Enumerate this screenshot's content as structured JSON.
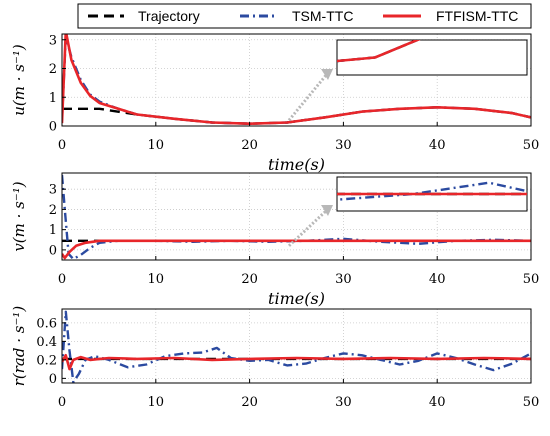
{
  "chart_data": {
    "type": "line",
    "legend": {
      "placement": "top",
      "entries": [
        {
          "name": "Trajectory",
          "color": "#000000",
          "style": "dashed"
        },
        {
          "name": "TSM-TTC",
          "color": "#2b4aa0",
          "style": "dashdot"
        },
        {
          "name": "FTFISM-TTC",
          "color": "#e8262a",
          "style": "solid"
        }
      ]
    },
    "panels": [
      {
        "id": "u",
        "ylabel": "u(m · s⁻¹)",
        "xlabel": "time(s)",
        "xlim": [
          0,
          50
        ],
        "ylim": [
          0,
          3.2
        ],
        "xticks": [
          0,
          10,
          20,
          30,
          40,
          50
        ],
        "yticks": [
          0,
          1,
          2,
          3
        ],
        "grid": true,
        "inset": true,
        "series": [
          {
            "name": "Trajectory",
            "points": [
              [
                0,
                0.6
              ],
              [
                4,
                0.6
              ],
              [
                8,
                0.4
              ],
              [
                12,
                0.25
              ],
              [
                16,
                0.12
              ],
              [
                20,
                0.08
              ],
              [
                24,
                0.12
              ],
              [
                28,
                0.3
              ],
              [
                32,
                0.5
              ],
              [
                36,
                0.6
              ],
              [
                40,
                0.65
              ],
              [
                44,
                0.6
              ],
              [
                48,
                0.45
              ],
              [
                50,
                0.3
              ]
            ]
          },
          {
            "name": "TSM-TTC",
            "points": [
              [
                0,
                0.2
              ],
              [
                0.4,
                3.1
              ],
              [
                1,
                2.4
              ],
              [
                2,
                1.6
              ],
              [
                3,
                1.1
              ],
              [
                4,
                0.85
              ],
              [
                6,
                0.6
              ],
              [
                8,
                0.4
              ],
              [
                12,
                0.25
              ],
              [
                16,
                0.12
              ],
              [
                20,
                0.08
              ],
              [
                24,
                0.12
              ],
              [
                28,
                0.3
              ],
              [
                32,
                0.5
              ],
              [
                36,
                0.6
              ],
              [
                40,
                0.65
              ],
              [
                44,
                0.6
              ],
              [
                48,
                0.45
              ],
              [
                50,
                0.3
              ]
            ]
          },
          {
            "name": "FTFISM-TTC",
            "points": [
              [
                0,
                0.1
              ],
              [
                0.4,
                3.3
              ],
              [
                1,
                2.3
              ],
              [
                2,
                1.5
              ],
              [
                3,
                1.05
              ],
              [
                4,
                0.8
              ],
              [
                6,
                0.6
              ],
              [
                8,
                0.4
              ],
              [
                12,
                0.25
              ],
              [
                16,
                0.12
              ],
              [
                20,
                0.08
              ],
              [
                24,
                0.12
              ],
              [
                28,
                0.3
              ],
              [
                32,
                0.5
              ],
              [
                36,
                0.6
              ],
              [
                40,
                0.65
              ],
              [
                44,
                0.6
              ],
              [
                48,
                0.45
              ],
              [
                50,
                0.3
              ]
            ]
          }
        ]
      },
      {
        "id": "v",
        "ylabel": "v(m · s⁻¹)",
        "xlabel": "time(s)",
        "xlim": [
          0,
          50
        ],
        "ylim": [
          -0.5,
          3.8
        ],
        "xticks": [
          0,
          10,
          20,
          30,
          40,
          50
        ],
        "yticks": [
          0,
          1,
          2,
          3
        ],
        "grid": true,
        "inset": true,
        "series": [
          {
            "name": "Trajectory",
            "points": [
              [
                0,
                0.45
              ],
              [
                3,
                0.45
              ],
              [
                50,
                0.45
              ]
            ]
          },
          {
            "name": "TSM-TTC",
            "points": [
              [
                0,
                3.7
              ],
              [
                0.3,
                2.0
              ],
              [
                0.7,
                -0.2
              ],
              [
                1.2,
                -0.45
              ],
              [
                2,
                -0.25
              ],
              [
                3,
                0.1
              ],
              [
                4,
                0.35
              ],
              [
                6,
                0.45
              ],
              [
                10,
                0.45
              ],
              [
                14,
                0.4
              ],
              [
                18,
                0.45
              ],
              [
                22,
                0.4
              ],
              [
                26,
                0.45
              ],
              [
                30,
                0.55
              ],
              [
                34,
                0.4
              ],
              [
                38,
                0.3
              ],
              [
                42,
                0.45
              ],
              [
                46,
                0.5
              ],
              [
                50,
                0.45
              ]
            ]
          },
          {
            "name": "FTFISM-TTC",
            "points": [
              [
                0,
                -0.2
              ],
              [
                0.3,
                -0.4
              ],
              [
                0.8,
                -0.1
              ],
              [
                1.5,
                0.2
              ],
              [
                2.5,
                0.35
              ],
              [
                4,
                0.45
              ],
              [
                6,
                0.45
              ],
              [
                10,
                0.45
              ],
              [
                20,
                0.45
              ],
              [
                30,
                0.45
              ],
              [
                40,
                0.45
              ],
              [
                50,
                0.45
              ]
            ]
          }
        ]
      },
      {
        "id": "r",
        "ylabel": "r(rad · s⁻¹)",
        "xlabel": "",
        "xlim": [
          0,
          50
        ],
        "ylim": [
          -0.05,
          0.75
        ],
        "xticks": [
          0,
          10,
          20,
          30,
          40,
          50
        ],
        "yticks": [
          0,
          0.2,
          0.4,
          0.6
        ],
        "grid": true,
        "inset": false,
        "series": [
          {
            "name": "Trajectory",
            "points": [
              [
                0,
                0.21
              ],
              [
                50,
                0.21
              ]
            ]
          },
          {
            "name": "TSM-TTC",
            "points": [
              [
                0,
                0.1
              ],
              [
                0.4,
                0.72
              ],
              [
                0.8,
                0.3
              ],
              [
                1.2,
                -0.04
              ],
              [
                1.8,
                0.05
              ],
              [
                2.5,
                0.2
              ],
              [
                3.5,
                0.24
              ],
              [
                5,
                0.2
              ],
              [
                7,
                0.12
              ],
              [
                9,
                0.15
              ],
              [
                11,
                0.24
              ],
              [
                13,
                0.27
              ],
              [
                15,
                0.28
              ],
              [
                16.5,
                0.33
              ],
              [
                18,
                0.22
              ],
              [
                20,
                0.19
              ],
              [
                22,
                0.2
              ],
              [
                24,
                0.14
              ],
              [
                26,
                0.16
              ],
              [
                28,
                0.22
              ],
              [
                30,
                0.27
              ],
              [
                32,
                0.25
              ],
              [
                34,
                0.2
              ],
              [
                36,
                0.15
              ],
              [
                38,
                0.19
              ],
              [
                40,
                0.27
              ],
              [
                42,
                0.22
              ],
              [
                44,
                0.15
              ],
              [
                46,
                0.09
              ],
              [
                48,
                0.16
              ],
              [
                50,
                0.27
              ]
            ]
          },
          {
            "name": "FTFISM-TTC",
            "points": [
              [
                0,
                0.18
              ],
              [
                0.4,
                0.25
              ],
              [
                0.8,
                0.1
              ],
              [
                1.2,
                0.2
              ],
              [
                2,
                0.23
              ],
              [
                3,
                0.2
              ],
              [
                5,
                0.22
              ],
              [
                8,
                0.21
              ],
              [
                12,
                0.22
              ],
              [
                16,
                0.2
              ],
              [
                20,
                0.21
              ],
              [
                25,
                0.22
              ],
              [
                30,
                0.21
              ],
              [
                35,
                0.22
              ],
              [
                40,
                0.21
              ],
              [
                45,
                0.22
              ],
              [
                50,
                0.21
              ]
            ]
          }
        ]
      }
    ]
  }
}
